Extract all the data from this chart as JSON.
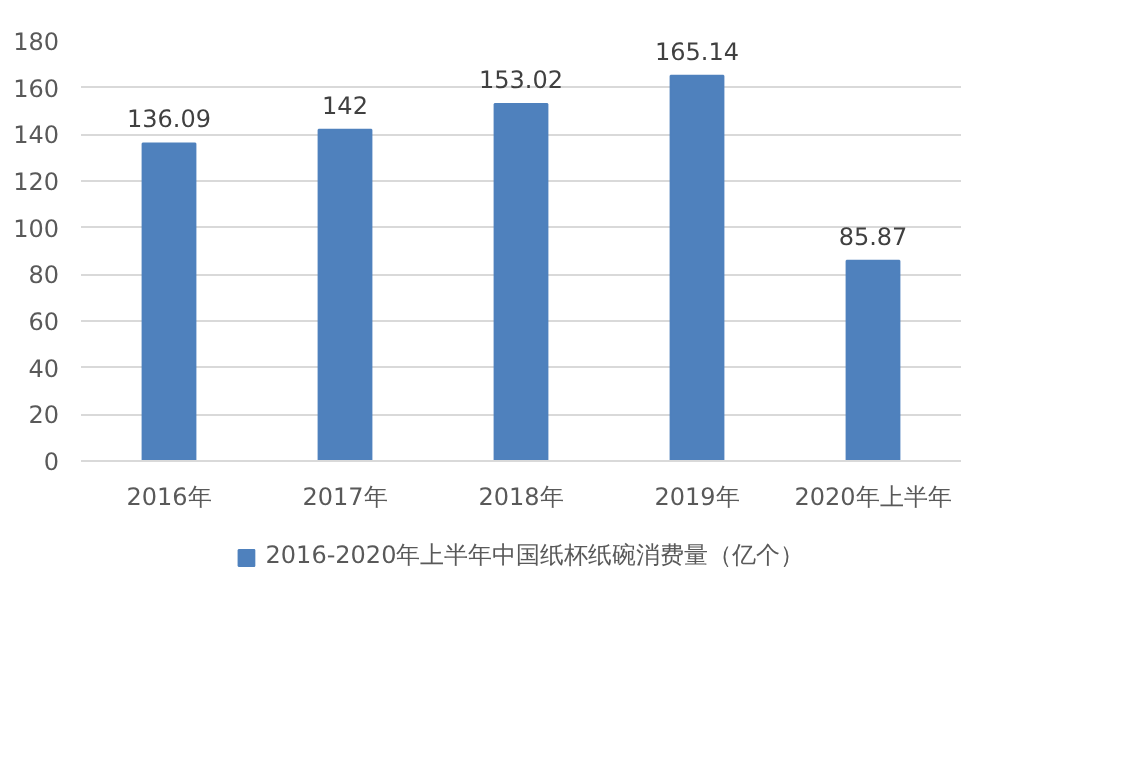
{
  "chart_data": {
    "type": "bar",
    "categories": [
      "2016年",
      "2017年",
      "2018年",
      "2019年",
      "2020年上半年"
    ],
    "series": [
      {
        "name": "2016-2020年上半年中国纸杯纸碗消费量（亿个）",
        "color": "#4f81bd",
        "values": [
          136.09,
          142,
          153.02,
          165.14,
          85.87
        ]
      }
    ],
    "ylim": [
      0,
      180
    ],
    "yticks": [
      0,
      20,
      40,
      60,
      80,
      100,
      120,
      140,
      160,
      180
    ],
    "grid": "y",
    "legend": "bottom",
    "data_labels": true
  }
}
